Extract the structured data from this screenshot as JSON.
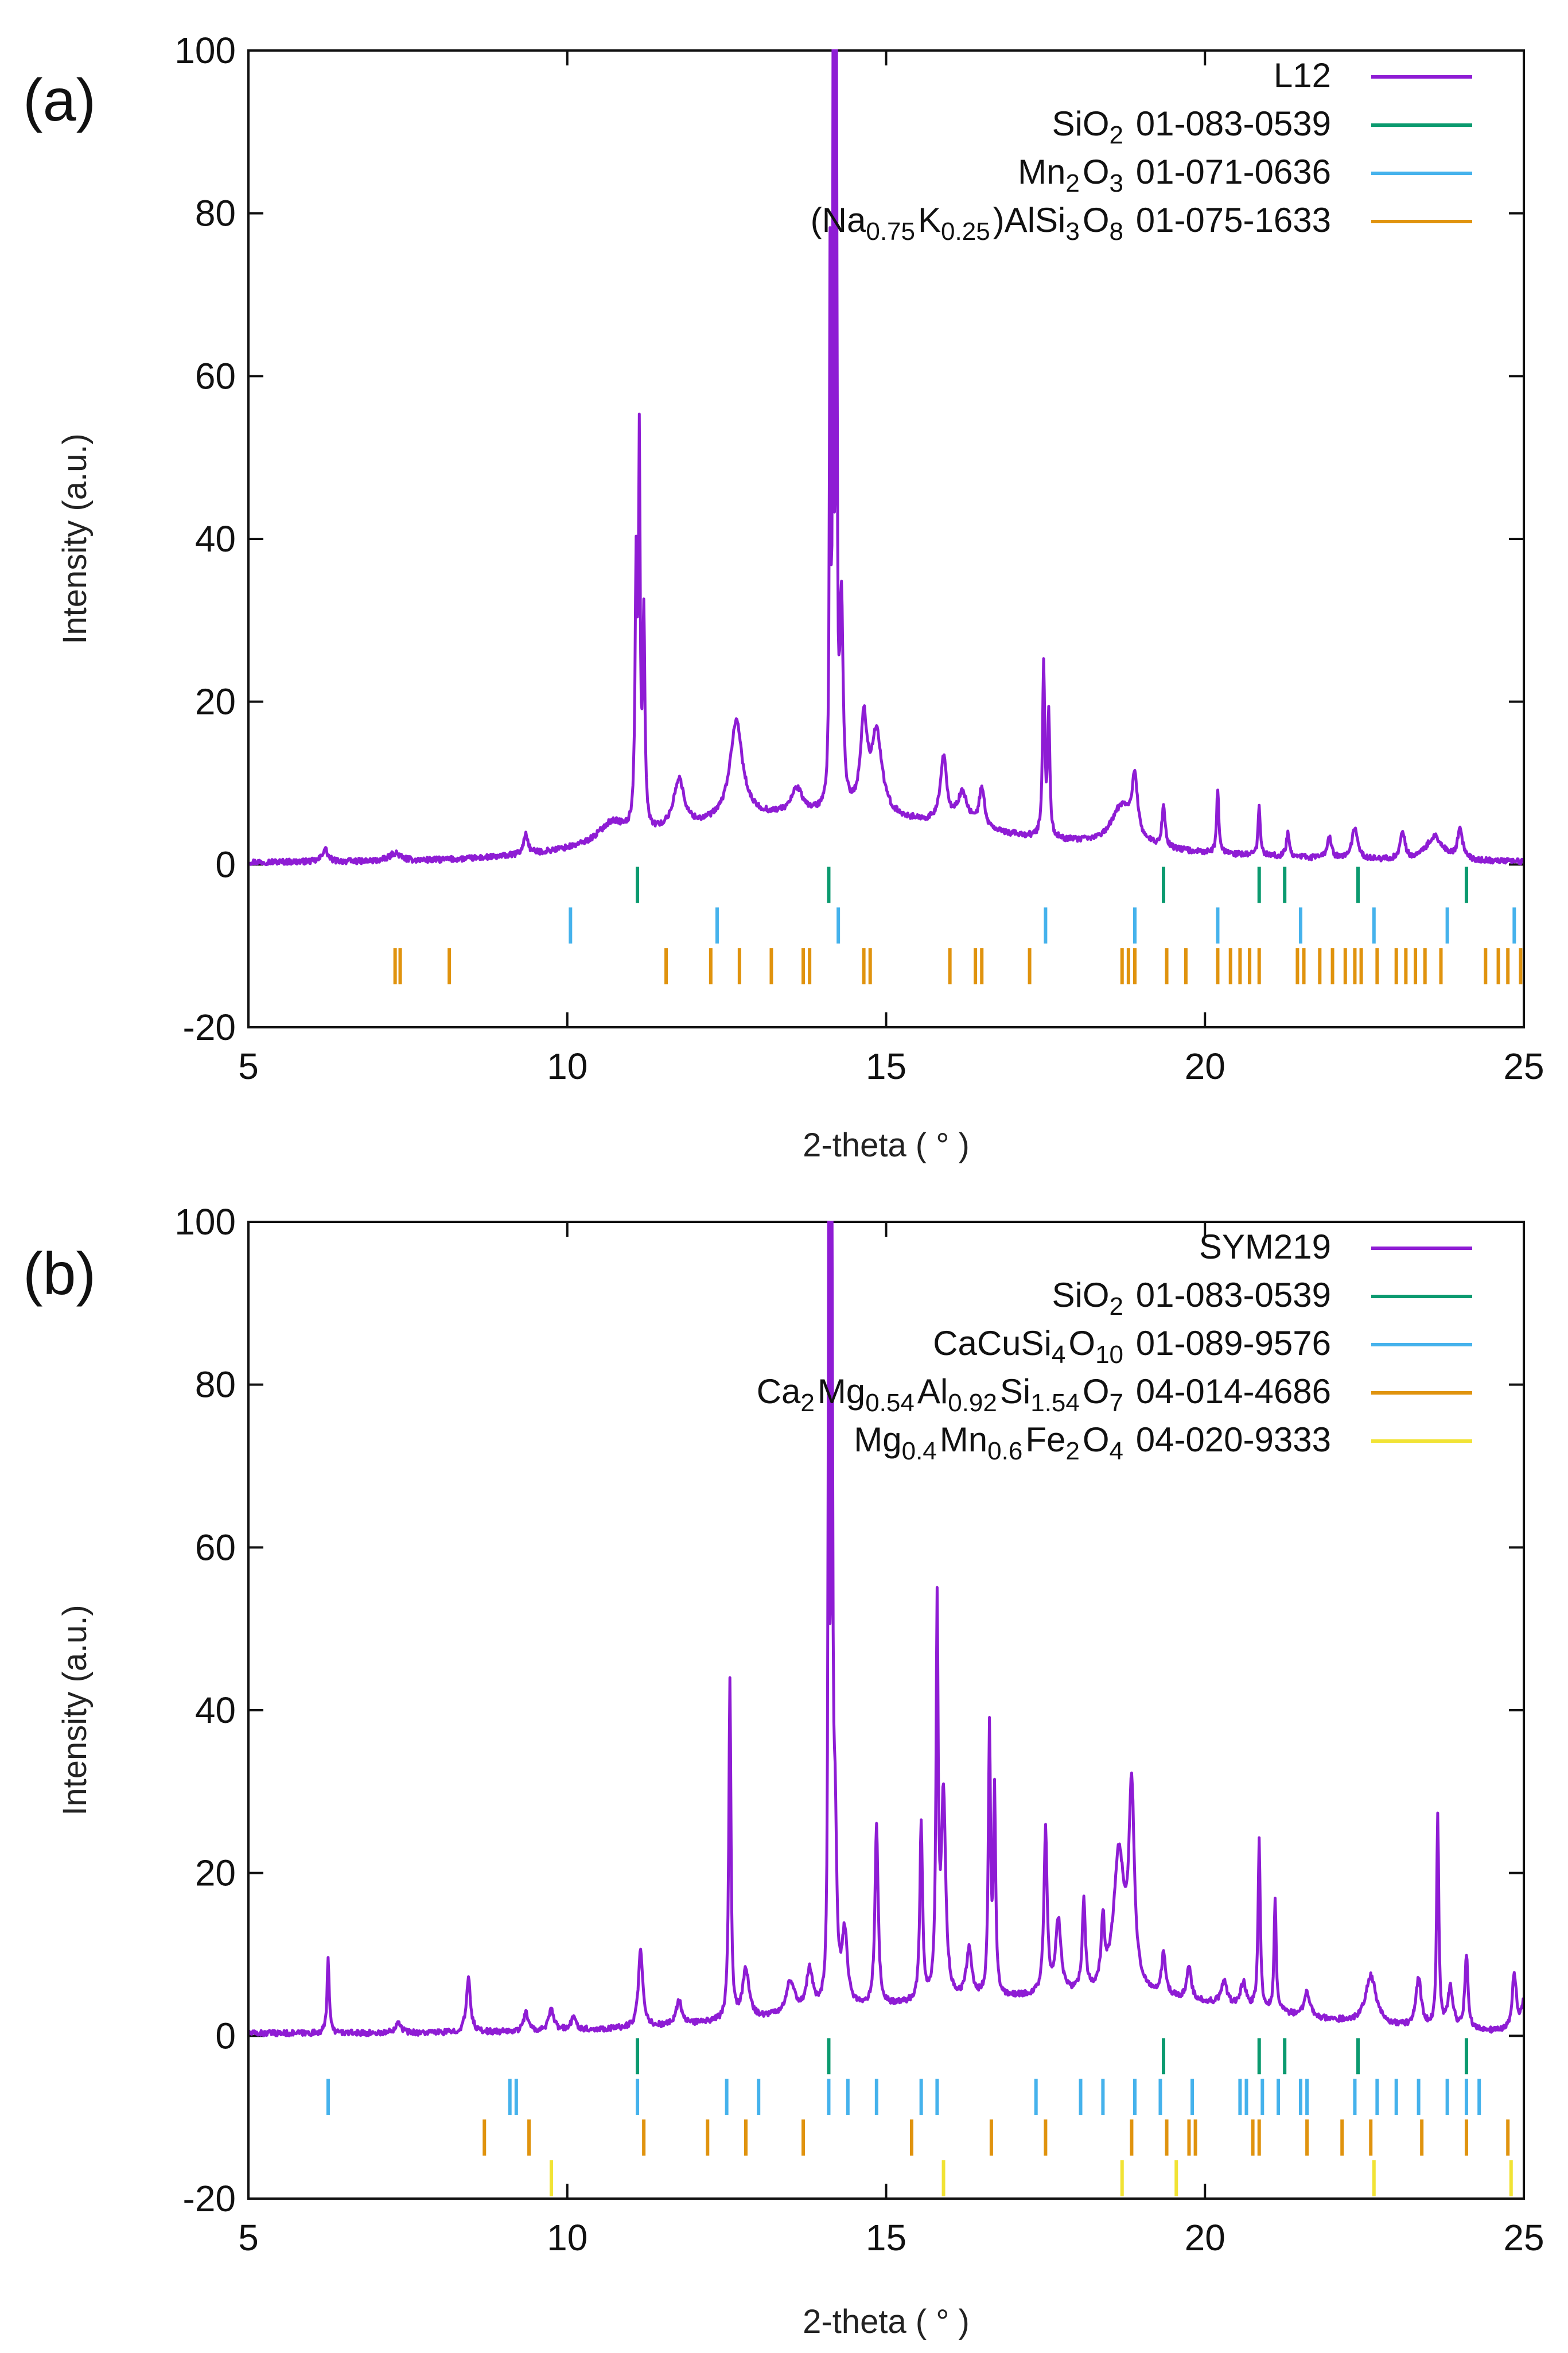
{
  "colors": {
    "pattern": "#8e1cd4",
    "green": "#0b9a6f",
    "blue": "#45b2ec",
    "orange": "#e0930e",
    "yellow": "#f1e335",
    "axis": "#111111"
  },
  "chart_data": [
    {
      "type": "line",
      "panel_label": "(a)",
      "xlabel": "2-theta ( ° )",
      "ylabel": "Intensity (a.u.)",
      "xlim": [
        5,
        25
      ],
      "ylim": [
        -20,
        100
      ],
      "xticks": [
        5,
        10,
        15,
        20,
        25
      ],
      "yticks": [
        -20,
        0,
        20,
        40,
        60,
        80,
        100
      ],
      "legend_position": "top-right",
      "series": [
        {
          "name": "L12",
          "legend_parts": [
            {
              "t": "L12"
            }
          ],
          "color": "#8e1cd4",
          "baseline": 0.3,
          "noise": 0.35,
          "peaks": [
            [
              6.2,
              1.6,
              0.05
            ],
            [
              7.3,
              1.0,
              0.1
            ],
            [
              9.35,
              2.5,
              0.04
            ],
            [
              10.7,
              2.5,
              0.25
            ],
            [
              11.08,
              32,
              0.02
            ],
            [
              11.13,
              45,
              0.015
            ],
            [
              11.2,
              26,
              0.02
            ],
            [
              11.75,
              6,
              0.1
            ],
            [
              12.65,
              12,
              0.12
            ],
            [
              13.6,
              3,
              0.1
            ],
            [
              14.12,
              66,
              0.012
            ],
            [
              14.17,
              98,
              0.01
            ],
            [
              14.22,
              97,
              0.012
            ],
            [
              14.3,
              25,
              0.03
            ],
            [
              14.65,
              11,
              0.06
            ],
            [
              14.85,
              10,
              0.1
            ],
            [
              15.9,
              8,
              0.06
            ],
            [
              16.2,
              4,
              0.1
            ],
            [
              16.5,
              5,
              0.05
            ],
            [
              17.47,
              21,
              0.02
            ],
            [
              17.55,
              15,
              0.02
            ],
            [
              18.7,
              5,
              0.2
            ],
            [
              18.9,
              7,
              0.05
            ],
            [
              19.35,
              5,
              0.03
            ],
            [
              20.2,
              8,
              0.02
            ],
            [
              20.85,
              6,
              0.02
            ],
            [
              21.3,
              3,
              0.03
            ],
            [
              21.95,
              2.5,
              0.04
            ],
            [
              22.35,
              4,
              0.05
            ],
            [
              23.1,
              3.5,
              0.04
            ],
            [
              23.6,
              3,
              0.15
            ],
            [
              24.0,
              3.5,
              0.05
            ]
          ],
          "humps": [
            [
              13.5,
              4.5,
              2.2
            ],
            [
              16.5,
              2.0,
              3.0
            ]
          ]
        },
        {
          "name": "SiO2 01-083-0539",
          "legend_parts": [
            {
              "t": "SiO"
            },
            {
              "t": "2",
              "sub": true
            },
            {
              "t": " 01-083-0539"
            }
          ],
          "color": "#0b9a6f",
          "stick_range": [
            -5,
            0
          ],
          "positions": [
            11.1,
            14.1,
            19.35,
            20.85,
            21.25,
            22.4,
            24.1
          ]
        },
        {
          "name": "Mn2O3 01-071-0636",
          "legend_parts": [
            {
              "t": "Mn"
            },
            {
              "t": "2",
              "sub": true
            },
            {
              "t": "O"
            },
            {
              "t": "3",
              "sub": true
            },
            {
              "t": " 01-071-0636"
            }
          ],
          "color": "#45b2ec",
          "stick_range": [
            -10,
            -5
          ],
          "positions": [
            10.05,
            12.35,
            14.25,
            17.5,
            18.9,
            20.2,
            21.5,
            22.65,
            23.8,
            24.85
          ]
        },
        {
          "name": "(Na0.75K0.25)AlSi3O8 01-075-1633",
          "legend_parts": [
            {
              "t": "(Na"
            },
            {
              "t": "0.75",
              "sub": true
            },
            {
              "t": "K"
            },
            {
              "t": "0.25",
              "sub": true
            },
            {
              "t": ")AlSi"
            },
            {
              "t": "3",
              "sub": true
            },
            {
              "t": "O"
            },
            {
              "t": "8",
              "sub": true
            },
            {
              "t": " 01-075-1633"
            }
          ],
          "color": "#e0930e",
          "stick_range": [
            -15,
            -10
          ],
          "positions": [
            7.3,
            7.38,
            8.15,
            11.55,
            12.25,
            12.7,
            13.2,
            13.7,
            13.8,
            14.65,
            14.75,
            16.0,
            16.4,
            16.5,
            17.25,
            18.7,
            18.8,
            18.9,
            19.4,
            19.7,
            20.2,
            20.4,
            20.55,
            20.7,
            20.85,
            21.45,
            21.55,
            21.8,
            22.0,
            22.2,
            22.35,
            22.45,
            22.7,
            23.0,
            23.15,
            23.3,
            23.45,
            23.7,
            24.4,
            24.6,
            24.75,
            24.95
          ]
        }
      ]
    },
    {
      "type": "line",
      "panel_label": "(b)",
      "xlabel": "2-theta ( ° )",
      "ylabel": "Intensity (a.u.)",
      "xlim": [
        5,
        25
      ],
      "ylim": [
        -20,
        100
      ],
      "xticks": [
        5,
        10,
        15,
        20,
        25
      ],
      "yticks": [
        -20,
        0,
        20,
        40,
        60,
        80,
        100
      ],
      "legend_position": "top-right",
      "series": [
        {
          "name": "SYM219",
          "legend_parts": [
            {
              "t": "SYM219"
            }
          ],
          "color": "#8e1cd4",
          "baseline": 0.3,
          "noise": 0.35,
          "peaks": [
            [
              6.25,
              9.5,
              0.02
            ],
            [
              7.35,
              1.5,
              0.05
            ],
            [
              8.45,
              6.5,
              0.04
            ],
            [
              9.35,
              2.5,
              0.04
            ],
            [
              9.75,
              2.5,
              0.05
            ],
            [
              10.1,
              1.5,
              0.05
            ],
            [
              11.15,
              9.5,
              0.04
            ],
            [
              11.75,
              3,
              0.05
            ],
            [
              12.55,
              42,
              0.02
            ],
            [
              12.8,
              6,
              0.06
            ],
            [
              13.5,
              4,
              0.08
            ],
            [
              13.8,
              5,
              0.06
            ],
            [
              14.1,
              99,
              0.012
            ],
            [
              14.15,
              92,
              0.015
            ],
            [
              14.2,
              20,
              0.03
            ],
            [
              14.35,
              9,
              0.05
            ],
            [
              14.85,
              22,
              0.03
            ],
            [
              15.55,
              22,
              0.025
            ],
            [
              15.8,
              47,
              0.02
            ],
            [
              15.9,
              25,
              0.04
            ],
            [
              16.3,
              6,
              0.05
            ],
            [
              16.62,
              33,
              0.02
            ],
            [
              16.7,
              25,
              0.02
            ],
            [
              17.5,
              20,
              0.03
            ],
            [
              17.7,
              9,
              0.05
            ],
            [
              18.1,
              11,
              0.03
            ],
            [
              18.4,
              8,
              0.03
            ],
            [
              18.65,
              17,
              0.1
            ],
            [
              18.85,
              24,
              0.05
            ],
            [
              19.35,
              5,
              0.04
            ],
            [
              19.75,
              4,
              0.04
            ],
            [
              20.3,
              3,
              0.05
            ],
            [
              20.6,
              3,
              0.05
            ],
            [
              20.85,
              21,
              0.02
            ],
            [
              21.1,
              14,
              0.02
            ],
            [
              21.6,
              3,
              0.05
            ],
            [
              22.6,
              6,
              0.1
            ],
            [
              23.35,
              6,
              0.05
            ],
            [
              23.65,
              26,
              0.02
            ],
            [
              23.85,
              5,
              0.05
            ],
            [
              24.1,
              9,
              0.03
            ],
            [
              24.85,
              7,
              0.04
            ],
            [
              25.0,
              3.5,
              0.05
            ]
          ],
          "humps": [
            [
              16.5,
              3.5,
              3.0
            ],
            [
              19.5,
              2.0,
              2.0
            ]
          ]
        },
        {
          "name": "SiO2 01-083-0539",
          "legend_parts": [
            {
              "t": "SiO"
            },
            {
              "t": "2",
              "sub": true
            },
            {
              "t": " 01-083-0539"
            }
          ],
          "color": "#0b9a6f",
          "stick_range": [
            -5,
            0
          ],
          "positions": [
            11.1,
            14.1,
            19.35,
            20.85,
            21.25,
            22.4,
            24.1
          ]
        },
        {
          "name": "CaCuSi4O10 01-089-9576",
          "legend_parts": [
            {
              "t": "CaCuSi"
            },
            {
              "t": "4",
              "sub": true
            },
            {
              "t": "O"
            },
            {
              "t": "10",
              "sub": true
            },
            {
              "t": " 01-089-9576"
            }
          ],
          "color": "#45b2ec",
          "stick_range": [
            -10,
            -5
          ],
          "positions": [
            6.25,
            9.1,
            9.2,
            11.1,
            12.5,
            13.0,
            14.1,
            14.4,
            14.85,
            15.55,
            15.8,
            17.35,
            18.05,
            18.4,
            18.9,
            19.3,
            19.8,
            20.55,
            20.65,
            20.9,
            21.15,
            21.5,
            21.6,
            22.35,
            22.7,
            23.0,
            23.35,
            23.8,
            24.1,
            24.3
          ]
        },
        {
          "name": "Ca2Mg0.54Al0.92Si1.54O7 04-014-4686",
          "legend_parts": [
            {
              "t": "Ca"
            },
            {
              "t": "2",
              "sub": true
            },
            {
              "t": "Mg"
            },
            {
              "t": "0.54",
              "sub": true
            },
            {
              "t": "Al"
            },
            {
              "t": "0.92",
              "sub": true
            },
            {
              "t": "Si"
            },
            {
              "t": "1.54",
              "sub": true
            },
            {
              "t": "O"
            },
            {
              "t": "7",
              "sub": true
            },
            {
              "t": " 04-014-4686"
            }
          ],
          "color": "#e0930e",
          "stick_range": [
            -15,
            -10
          ],
          "positions": [
            8.7,
            9.4,
            11.2,
            12.2,
            12.8,
            13.7,
            15.4,
            16.65,
            17.5,
            18.85,
            19.4,
            19.75,
            19.85,
            20.75,
            20.85,
            21.6,
            22.15,
            22.6,
            23.4,
            24.1,
            24.75
          ]
        },
        {
          "name": "Mg0.4Mn0.6Fe2O4 04-020-9333",
          "legend_parts": [
            {
              "t": "Mg"
            },
            {
              "t": "0.4",
              "sub": true
            },
            {
              "t": "Mn"
            },
            {
              "t": "0.6",
              "sub": true
            },
            {
              "t": "Fe"
            },
            {
              "t": "2",
              "sub": true
            },
            {
              "t": "O"
            },
            {
              "t": "4",
              "sub": true
            },
            {
              "t": " 04-020-9333"
            }
          ],
          "color": "#f1e335",
          "stick_range": [
            -20,
            -15
          ],
          "positions": [
            9.75,
            15.9,
            18.7,
            19.55,
            22.65,
            24.8
          ]
        }
      ]
    }
  ]
}
